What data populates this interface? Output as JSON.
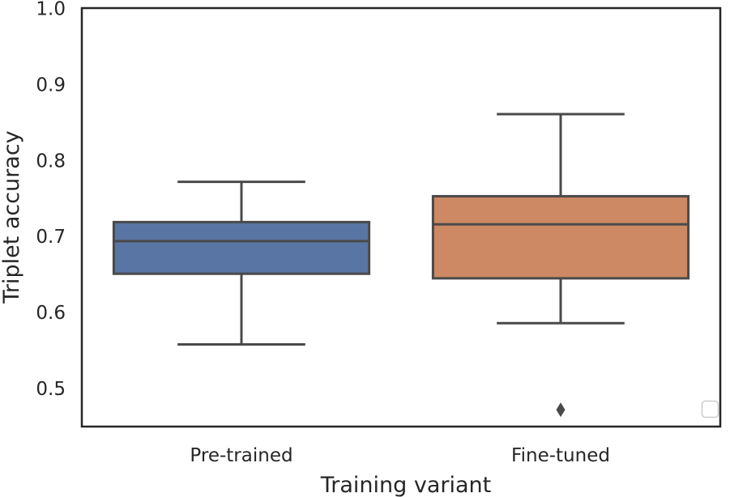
{
  "chart_data": {
    "type": "box",
    "title": "",
    "xlabel": "Training variant",
    "ylabel": "Triplet accuracy",
    "ylim": [
      0.45,
      1.0
    ],
    "yticks": [
      0.5,
      0.6,
      0.7,
      0.8,
      0.9,
      1.0
    ],
    "ytick_labels": [
      "0.5",
      "0.6",
      "0.7",
      "0.8",
      "0.9",
      "1.0"
    ],
    "categories": [
      "Pre-trained",
      "Fine-tuned"
    ],
    "boxes": [
      {
        "name": "Pre-trained",
        "color": "#5975a4",
        "whisker_low": 0.558,
        "q1": 0.651,
        "median": 0.694,
        "q3": 0.719,
        "whisker_high": 0.772,
        "outliers": []
      },
      {
        "name": "Fine-tuned",
        "color": "#cc8963",
        "whisker_low": 0.586,
        "q1": 0.645,
        "median": 0.716,
        "q3": 0.753,
        "whisker_high": 0.861,
        "outliers": [
          0.472
        ]
      }
    ],
    "legend": {
      "position": "lower right",
      "entries": []
    },
    "grid": false
  }
}
